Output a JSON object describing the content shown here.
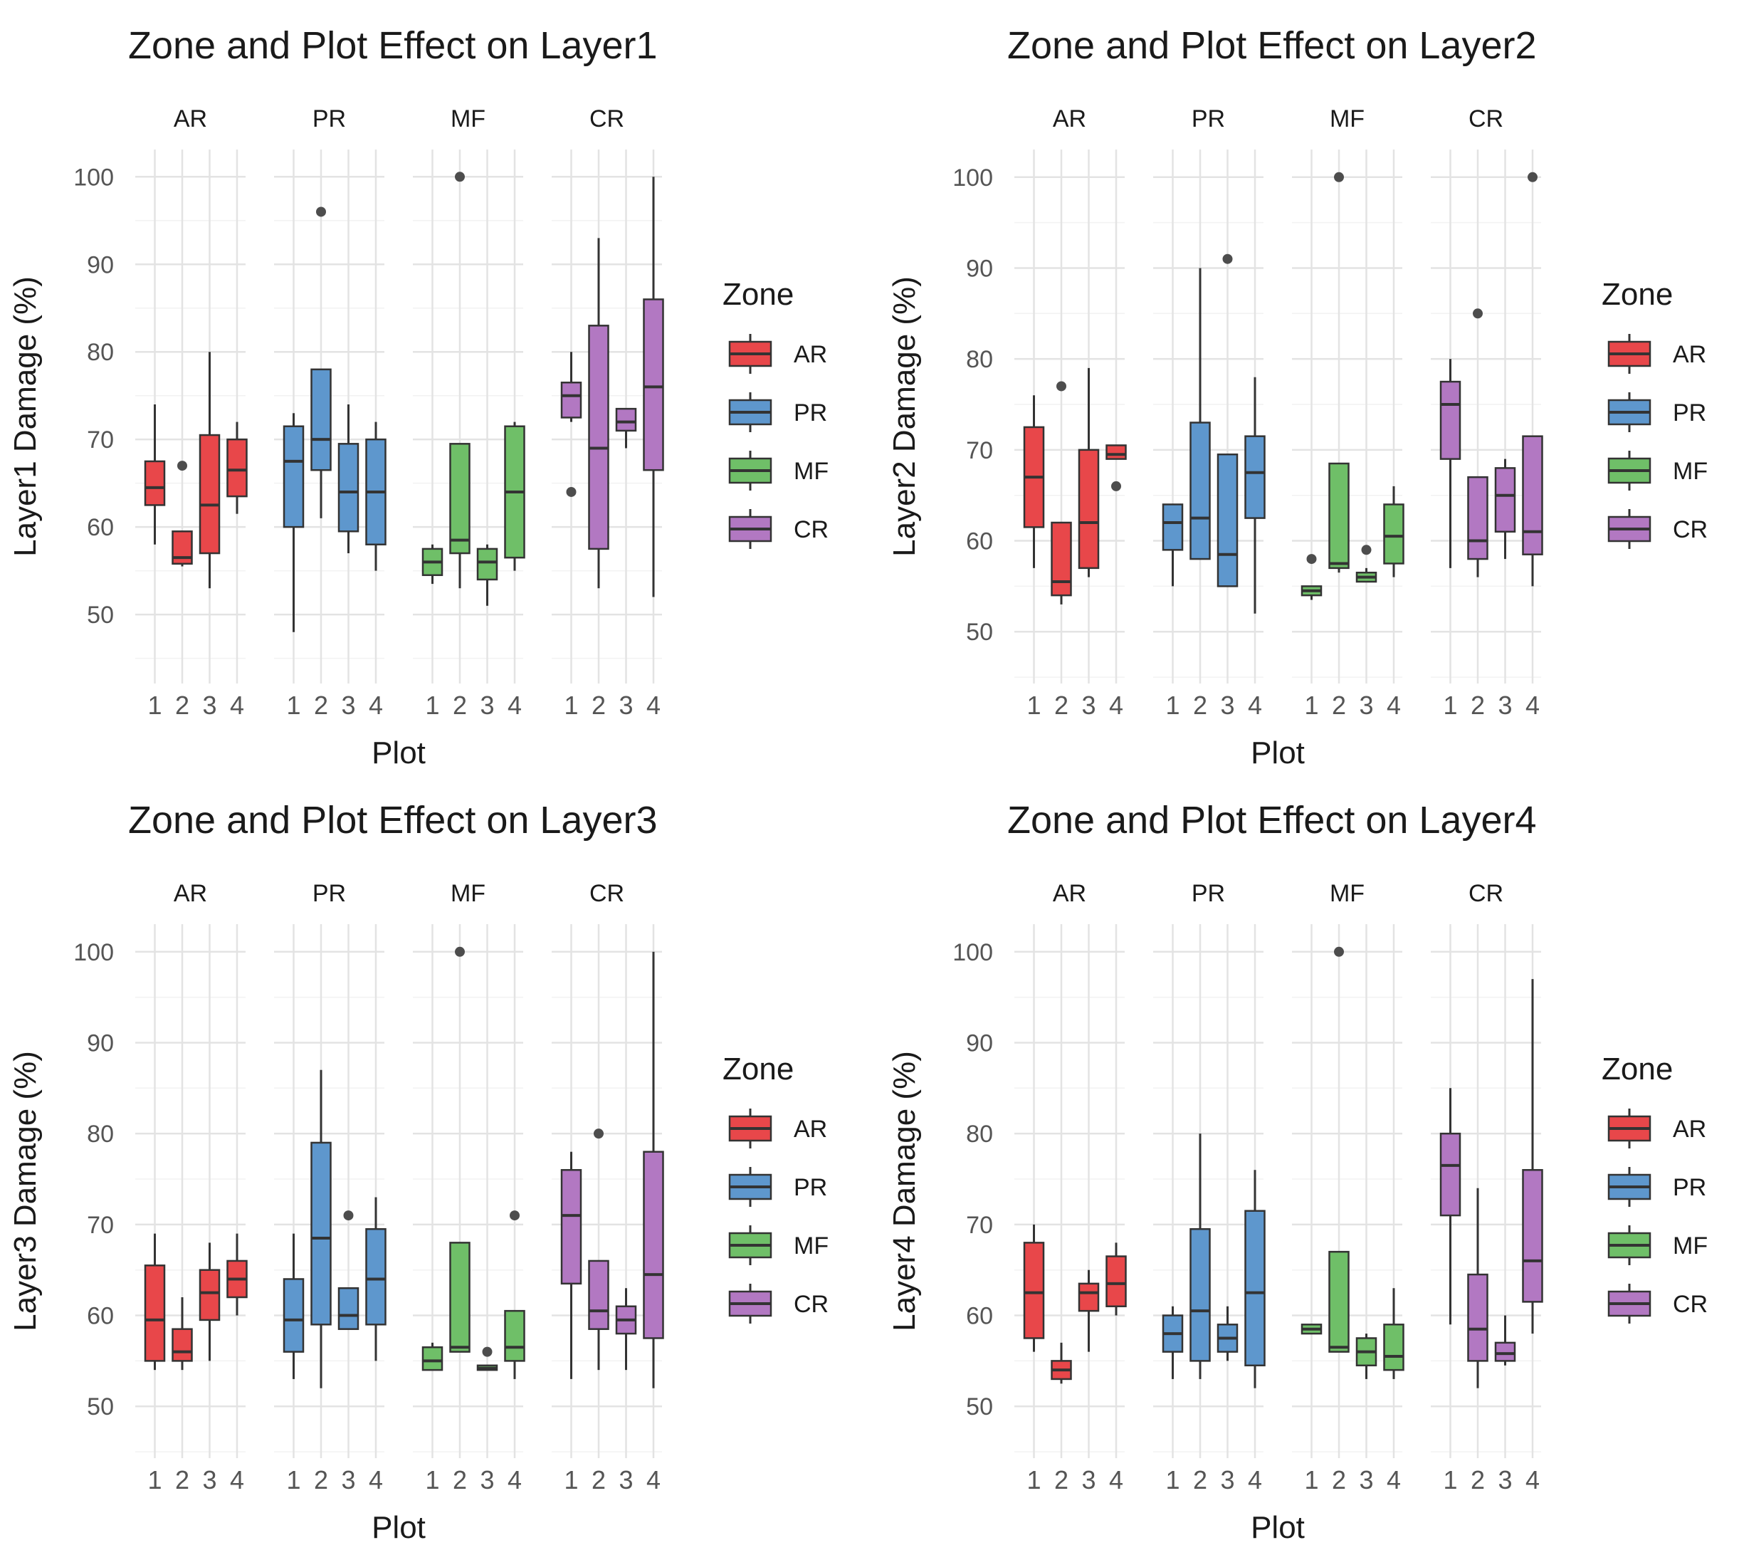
{
  "zone_colors": {
    "AR": "#e8474a",
    "PR": "#5e97cd",
    "MF": "#6fbf68",
    "CR": "#b278c2"
  },
  "chart_data": [
    {
      "type": "boxplot",
      "title": "Zone and Plot Effect on Layer1",
      "xlabel": "Plot",
      "ylabel": "Layer1 Damage (%)",
      "ylim": [
        47,
        101
      ],
      "yticks": [
        50,
        60,
        70,
        80,
        90,
        100
      ],
      "facets": [
        "AR",
        "PR",
        "MF",
        "CR"
      ],
      "plots": [
        "1",
        "2",
        "3",
        "4"
      ],
      "legend": {
        "title": "Zone",
        "items": [
          "AR",
          "PR",
          "MF",
          "CR"
        ]
      },
      "boxes": {
        "AR": [
          {
            "plot": "1",
            "min": 58,
            "q1": 62.5,
            "median": 64.5,
            "q3": 67.5,
            "max": 74,
            "outliers": []
          },
          {
            "plot": "2",
            "min": 55.5,
            "q1": 55.8,
            "median": 56.5,
            "q3": 59.5,
            "max": 59.5,
            "outliers": [
              67
            ]
          },
          {
            "plot": "3",
            "min": 53,
            "q1": 57,
            "median": 62.5,
            "q3": 70.5,
            "max": 80,
            "outliers": []
          },
          {
            "plot": "4",
            "min": 61.5,
            "q1": 63.5,
            "median": 66.5,
            "q3": 70,
            "max": 72,
            "outliers": []
          }
        ],
        "PR": [
          {
            "plot": "1",
            "min": 48,
            "q1": 60,
            "median": 67.5,
            "q3": 71.5,
            "max": 73,
            "outliers": []
          },
          {
            "plot": "2",
            "min": 61,
            "q1": 66.5,
            "median": 70,
            "q3": 78,
            "max": 78,
            "outliers": [
              96
            ]
          },
          {
            "plot": "3",
            "min": 57,
            "q1": 59.5,
            "median": 64,
            "q3": 69.5,
            "max": 74,
            "outliers": []
          },
          {
            "plot": "4",
            "min": 55,
            "q1": 58,
            "median": 64,
            "q3": 70,
            "max": 72,
            "outliers": []
          }
        ],
        "MF": [
          {
            "plot": "1",
            "min": 53.5,
            "q1": 54.5,
            "median": 56,
            "q3": 57.5,
            "max": 58,
            "outliers": []
          },
          {
            "plot": "2",
            "min": 53,
            "q1": 57,
            "median": 58.5,
            "q3": 69.5,
            "max": 69.5,
            "outliers": [
              100
            ]
          },
          {
            "plot": "3",
            "min": 51,
            "q1": 54,
            "median": 56,
            "q3": 57.5,
            "max": 58,
            "outliers": []
          },
          {
            "plot": "4",
            "min": 55,
            "q1": 56.5,
            "median": 64,
            "q3": 71.5,
            "max": 72,
            "outliers": []
          }
        ],
        "CR": [
          {
            "plot": "1",
            "min": 72,
            "q1": 72.5,
            "median": 75,
            "q3": 76.5,
            "max": 80,
            "outliers": [
              64
            ]
          },
          {
            "plot": "2",
            "min": 53,
            "q1": 57.5,
            "median": 69,
            "q3": 83,
            "max": 93,
            "outliers": []
          },
          {
            "plot": "3",
            "min": 69,
            "q1": 71,
            "median": 72,
            "q3": 73.5,
            "max": 73.5,
            "outliers": []
          },
          {
            "plot": "4",
            "min": 52,
            "q1": 66.5,
            "median": 76,
            "q3": 86,
            "max": 100,
            "outliers": []
          }
        ]
      }
    },
    {
      "type": "boxplot",
      "title": "Zone and Plot Effect on Layer2",
      "xlabel": "Plot",
      "ylabel": "Layer2 Damage (%)",
      "ylim": [
        49,
        101
      ],
      "yticks": [
        50,
        60,
        70,
        80,
        90,
        100
      ],
      "facets": [
        "AR",
        "PR",
        "MF",
        "CR"
      ],
      "plots": [
        "1",
        "2",
        "3",
        "4"
      ],
      "legend": {
        "title": "Zone",
        "items": [
          "AR",
          "PR",
          "MF",
          "CR"
        ]
      },
      "boxes": {
        "AR": [
          {
            "plot": "1",
            "min": 57,
            "q1": 61.5,
            "median": 67,
            "q3": 72.5,
            "max": 76,
            "outliers": []
          },
          {
            "plot": "2",
            "min": 53,
            "q1": 54,
            "median": 55.5,
            "q3": 62,
            "max": 62,
            "outliers": [
              77
            ]
          },
          {
            "plot": "3",
            "min": 56,
            "q1": 57,
            "median": 62,
            "q3": 70,
            "max": 79,
            "outliers": []
          },
          {
            "plot": "4",
            "min": 69,
            "q1": 69,
            "median": 69.5,
            "q3": 70.5,
            "max": 70.5,
            "outliers": [
              66
            ]
          }
        ],
        "PR": [
          {
            "plot": "1",
            "min": 55,
            "q1": 59,
            "median": 62,
            "q3": 64,
            "max": 64,
            "outliers": []
          },
          {
            "plot": "2",
            "min": 58,
            "q1": 58,
            "median": 62.5,
            "q3": 73,
            "max": 90,
            "outliers": []
          },
          {
            "plot": "3",
            "min": 55,
            "q1": 55,
            "median": 58.5,
            "q3": 69.5,
            "max": 69.5,
            "outliers": [
              91
            ]
          },
          {
            "plot": "4",
            "min": 52,
            "q1": 62.5,
            "median": 67.5,
            "q3": 71.5,
            "max": 78,
            "outliers": []
          }
        ],
        "MF": [
          {
            "plot": "1",
            "min": 53.5,
            "q1": 54,
            "median": 54.5,
            "q3": 55,
            "max": 55,
            "outliers": [
              58
            ]
          },
          {
            "plot": "2",
            "min": 56.5,
            "q1": 57,
            "median": 57.5,
            "q3": 68.5,
            "max": 68.5,
            "outliers": [
              100
            ]
          },
          {
            "plot": "3",
            "min": 55.5,
            "q1": 55.5,
            "median": 56,
            "q3": 56.5,
            "max": 57,
            "outliers": [
              59
            ]
          },
          {
            "plot": "4",
            "min": 56,
            "q1": 57.5,
            "median": 60.5,
            "q3": 64,
            "max": 66,
            "outliers": []
          }
        ],
        "CR": [
          {
            "plot": "1",
            "min": 57,
            "q1": 69,
            "median": 75,
            "q3": 77.5,
            "max": 80,
            "outliers": []
          },
          {
            "plot": "2",
            "min": 56,
            "q1": 58,
            "median": 60,
            "q3": 67,
            "max": 67,
            "outliers": [
              85
            ]
          },
          {
            "plot": "3",
            "min": 58,
            "q1": 61,
            "median": 65,
            "q3": 68,
            "max": 69,
            "outliers": []
          },
          {
            "plot": "4",
            "min": 55,
            "q1": 58.5,
            "median": 61,
            "q3": 71.5,
            "max": 71.5,
            "outliers": [
              100
            ]
          }
        ]
      }
    },
    {
      "type": "boxplot",
      "title": "Zone and Plot Effect on Layer3",
      "xlabel": "Plot",
      "ylabel": "Layer3 Damage (%)",
      "ylim": [
        49,
        101
      ],
      "yticks": [
        50,
        60,
        70,
        80,
        90,
        100
      ],
      "facets": [
        "AR",
        "PR",
        "MF",
        "CR"
      ],
      "plots": [
        "1",
        "2",
        "3",
        "4"
      ],
      "legend": {
        "title": "Zone",
        "items": [
          "AR",
          "PR",
          "MF",
          "CR"
        ]
      },
      "boxes": {
        "AR": [
          {
            "plot": "1",
            "min": 54,
            "q1": 55,
            "median": 59.5,
            "q3": 65.5,
            "max": 69,
            "outliers": []
          },
          {
            "plot": "2",
            "min": 54,
            "q1": 55,
            "median": 56,
            "q3": 58.5,
            "max": 62,
            "outliers": []
          },
          {
            "plot": "3",
            "min": 55,
            "q1": 59.5,
            "median": 62.5,
            "q3": 65,
            "max": 68,
            "outliers": []
          },
          {
            "plot": "4",
            "min": 60,
            "q1": 62,
            "median": 64,
            "q3": 66,
            "max": 69,
            "outliers": []
          }
        ],
        "PR": [
          {
            "plot": "1",
            "min": 53,
            "q1": 56,
            "median": 59.5,
            "q3": 64,
            "max": 69,
            "outliers": []
          },
          {
            "plot": "2",
            "min": 52,
            "q1": 59,
            "median": 68.5,
            "q3": 79,
            "max": 87,
            "outliers": []
          },
          {
            "plot": "3",
            "min": 58.5,
            "q1": 58.5,
            "median": 60,
            "q3": 63,
            "max": 63,
            "outliers": [
              71
            ]
          },
          {
            "plot": "4",
            "min": 55,
            "q1": 59,
            "median": 64,
            "q3": 69.5,
            "max": 73,
            "outliers": []
          }
        ],
        "MF": [
          {
            "plot": "1",
            "min": 54,
            "q1": 54,
            "median": 55,
            "q3": 56.5,
            "max": 57,
            "outliers": []
          },
          {
            "plot": "2",
            "min": 56,
            "q1": 56,
            "median": 56.5,
            "q3": 68,
            "max": 68,
            "outliers": [
              100
            ]
          },
          {
            "plot": "3",
            "min": 54,
            "q1": 54,
            "median": 54.2,
            "q3": 54.5,
            "max": 54.5,
            "outliers": [
              56
            ]
          },
          {
            "plot": "4",
            "min": 53,
            "q1": 55,
            "median": 56.5,
            "q3": 60.5,
            "max": 60.5,
            "outliers": [
              71
            ]
          }
        ],
        "CR": [
          {
            "plot": "1",
            "min": 53,
            "q1": 63.5,
            "median": 71,
            "q3": 76,
            "max": 78,
            "outliers": []
          },
          {
            "plot": "2",
            "min": 54,
            "q1": 58.5,
            "median": 60.5,
            "q3": 66,
            "max": 66,
            "outliers": [
              80
            ]
          },
          {
            "plot": "3",
            "min": 54,
            "q1": 58,
            "median": 59.5,
            "q3": 61,
            "max": 63,
            "outliers": []
          },
          {
            "plot": "4",
            "min": 52,
            "q1": 57.5,
            "median": 64.5,
            "q3": 78,
            "max": 100,
            "outliers": []
          }
        ]
      }
    },
    {
      "type": "boxplot",
      "title": "Zone and Plot Effect on Layer4",
      "xlabel": "Plot",
      "ylabel": "Layer4 Damage (%)",
      "ylim": [
        49,
        101
      ],
      "yticks": [
        50,
        60,
        70,
        80,
        90,
        100
      ],
      "facets": [
        "AR",
        "PR",
        "MF",
        "CR"
      ],
      "plots": [
        "1",
        "2",
        "3",
        "4"
      ],
      "legend": {
        "title": "Zone",
        "items": [
          "AR",
          "PR",
          "MF",
          "CR"
        ]
      },
      "boxes": {
        "AR": [
          {
            "plot": "1",
            "min": 56,
            "q1": 57.5,
            "median": 62.5,
            "q3": 68,
            "max": 70,
            "outliers": []
          },
          {
            "plot": "2",
            "min": 52.5,
            "q1": 53,
            "median": 54,
            "q3": 55,
            "max": 57,
            "outliers": []
          },
          {
            "plot": "3",
            "min": 56,
            "q1": 60.5,
            "median": 62.5,
            "q3": 63.5,
            "max": 65,
            "outliers": []
          },
          {
            "plot": "4",
            "min": 60,
            "q1": 61,
            "median": 63.5,
            "q3": 66.5,
            "max": 68,
            "outliers": []
          }
        ],
        "PR": [
          {
            "plot": "1",
            "min": 53,
            "q1": 56,
            "median": 58,
            "q3": 60,
            "max": 61,
            "outliers": []
          },
          {
            "plot": "2",
            "min": 53,
            "q1": 55,
            "median": 60.5,
            "q3": 69.5,
            "max": 80,
            "outliers": []
          },
          {
            "plot": "3",
            "min": 55,
            "q1": 56,
            "median": 57.5,
            "q3": 59,
            "max": 61,
            "outliers": []
          },
          {
            "plot": "4",
            "min": 52,
            "q1": 54.5,
            "median": 62.5,
            "q3": 71.5,
            "max": 76,
            "outliers": []
          }
        ],
        "MF": [
          {
            "plot": "1",
            "min": 58,
            "q1": 58,
            "median": 58.5,
            "q3": 59,
            "max": 59,
            "outliers": []
          },
          {
            "plot": "2",
            "min": 56,
            "q1": 56,
            "median": 56.5,
            "q3": 67,
            "max": 67,
            "outliers": [
              100
            ]
          },
          {
            "plot": "3",
            "min": 53,
            "q1": 54.5,
            "median": 56,
            "q3": 57.5,
            "max": 58,
            "outliers": []
          },
          {
            "plot": "4",
            "min": 53,
            "q1": 54,
            "median": 55.5,
            "q3": 59,
            "max": 63,
            "outliers": []
          }
        ],
        "CR": [
          {
            "plot": "1",
            "min": 59,
            "q1": 71,
            "median": 76.5,
            "q3": 80,
            "max": 85,
            "outliers": []
          },
          {
            "plot": "2",
            "min": 52,
            "q1": 55,
            "median": 58.5,
            "q3": 64.5,
            "max": 74,
            "outliers": []
          },
          {
            "plot": "3",
            "min": 54.5,
            "q1": 55,
            "median": 55.8,
            "q3": 57,
            "max": 60,
            "outliers": []
          },
          {
            "plot": "4",
            "min": 58,
            "q1": 61.5,
            "median": 66,
            "q3": 76,
            "max": 97,
            "outliers": []
          }
        ]
      }
    }
  ]
}
